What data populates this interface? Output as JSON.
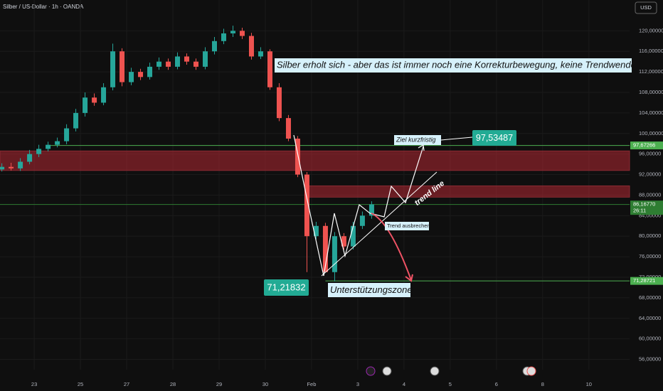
{
  "chart_data": {
    "type": "candlestick",
    "title": "Silber / US-Dollar · 1h · OANDA",
    "currency": "USD",
    "x": [
      -0.7,
      -0.5,
      -0.3,
      -0.1,
      0.1,
      0.3,
      0.5,
      0.7,
      0.9,
      1.1,
      1.3,
      1.5,
      1.7,
      1.9,
      2.1,
      2.3,
      2.5,
      2.7,
      2.9,
      3.1,
      3.3,
      3.5,
      3.7,
      3.9,
      4.1,
      4.3,
      4.5,
      4.7,
      4.9,
      5.1,
      5.3,
      5.5,
      5.7,
      5.9,
      6.1,
      6.3,
      6.5,
      6.7,
      6.9,
      7.1,
      7.3
    ],
    "open": [
      93.0,
      93.5,
      93.2,
      94.5,
      96,
      97,
      97.8,
      98.5,
      101,
      104,
      107,
      106,
      109,
      116,
      110,
      112,
      111,
      113,
      114,
      113,
      115,
      114,
      113,
      116,
      118,
      119.5,
      120,
      119,
      115,
      116,
      109,
      103,
      99,
      92,
      80,
      82,
      73,
      80,
      78,
      82,
      84
    ],
    "high": [
      94.2,
      94.3,
      95.2,
      96.8,
      97.8,
      98.4,
      99.2,
      101.8,
      104.8,
      108,
      107.8,
      109.8,
      117.5,
      116.6,
      112.8,
      112.6,
      113.8,
      114.8,
      114.6,
      115.8,
      115.6,
      114.6,
      116.8,
      118.8,
      120.4,
      121,
      120.6,
      119.6,
      116.8,
      116.4,
      109.8,
      103.6,
      99.5,
      92.5,
      82.8,
      82.6,
      80.8,
      80.6,
      82.8,
      84.8,
      86.8
    ],
    "low": [
      92.6,
      92.8,
      92.7,
      94.0,
      95.4,
      96.5,
      97.3,
      97.9,
      100.4,
      103.3,
      105.4,
      105.5,
      108.4,
      109.2,
      109.4,
      110.4,
      110.5,
      112.4,
      112.4,
      112.5,
      113.4,
      112.4,
      112.5,
      115.4,
      117.4,
      118.8,
      118.4,
      114.4,
      114.5,
      108.5,
      102.4,
      98.5,
      91.5,
      73,
      79.4,
      73,
      71.2,
      77.4,
      77.4,
      81.4,
      83.4
    ],
    "close": [
      93.5,
      93.2,
      94.5,
      96,
      97,
      97.8,
      98.5,
      101,
      104,
      107,
      106,
      109,
      116,
      110,
      112,
      111,
      113,
      114,
      113,
      115,
      114,
      113,
      116,
      118,
      119.5,
      120,
      119,
      115,
      116,
      109,
      103,
      99,
      92,
      80,
      82,
      73,
      80,
      78,
      82,
      84,
      86.2
    ],
    "up_color": "#26a69a",
    "down_color": "#ef5350",
    "xlim": [
      -0.74,
      12.88
    ],
    "ylim": [
      54,
      126
    ],
    "xticks": [
      {
        "value": 0,
        "label": "23"
      },
      {
        "value": 1,
        "label": "25"
      },
      {
        "value": 2,
        "label": "27"
      },
      {
        "value": 3,
        "label": "28"
      },
      {
        "value": 4,
        "label": "29"
      },
      {
        "value": 5,
        "label": "30"
      },
      {
        "value": 6,
        "label": "Feb"
      },
      {
        "value": 7,
        "label": "3"
      },
      {
        "value": 8,
        "label": "4"
      },
      {
        "value": 9,
        "label": "5"
      },
      {
        "value": 10,
        "label": "6"
      },
      {
        "value": 11,
        "label": "8"
      },
      {
        "value": 12,
        "label": "10"
      }
    ],
    "yticks": [
      {
        "value": 120,
        "label": "120,00000"
      },
      {
        "value": 116,
        "label": "116,00000"
      },
      {
        "value": 112,
        "label": "112,00000"
      },
      {
        "value": 108,
        "label": "108,00000"
      },
      {
        "value": 104,
        "label": "104,00000"
      },
      {
        "value": 100,
        "label": "100,00000"
      },
      {
        "value": 96,
        "label": "96,00000"
      },
      {
        "value": 92,
        "label": "92,00000"
      },
      {
        "value": 88,
        "label": "88,00000"
      },
      {
        "value": 84,
        "label": "84,00000"
      },
      {
        "value": 80,
        "label": "80,00000"
      },
      {
        "value": 76,
        "label": "76,00000"
      },
      {
        "value": 72,
        "label": "72,00000"
      },
      {
        "value": 68,
        "label": "68,00000"
      },
      {
        "value": 64,
        "label": "64,00000"
      },
      {
        "value": 60,
        "label": "60,00000"
      },
      {
        "value": 56,
        "label": "56,00000"
      }
    ],
    "grid": true,
    "zones": [
      {
        "from": 92.8,
        "to": 96.6,
        "start": -0.74
      },
      {
        "from": 87.6,
        "to": 89.8,
        "start": 5.9
      }
    ],
    "levels": [
      {
        "value": 97.67266,
        "label": "97,67266",
        "start": 0.35,
        "color": "#4caf50"
      },
      {
        "value": 86.1677,
        "label": "86,16770",
        "countdown": "26:11",
        "start": -0.74,
        "color": "#2e7d32"
      },
      {
        "value": 71.28721,
        "label": "71,28721",
        "start": 6.3,
        "color": "#4caf50"
      }
    ],
    "annotations": {
      "headline": "Silber erholt sich - aber das ist immer noch eine Korrekturbewegung, keine Trendwende.",
      "target_label": "Ziel kurzfristig",
      "target_price": "97,53487",
      "trend_line": "trend line",
      "breakout": "Trend ausbrechen",
      "low_price": "71,21832",
      "support": "Unterstützungszone"
    }
  }
}
